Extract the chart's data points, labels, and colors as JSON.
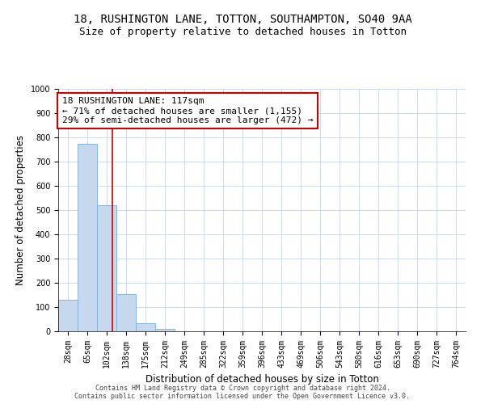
{
  "title": "18, RUSHINGTON LANE, TOTTON, SOUTHAMPTON, SO40 9AA",
  "subtitle": "Size of property relative to detached houses in Totton",
  "xlabel": "Distribution of detached houses by size in Totton",
  "ylabel": "Number of detached properties",
  "footer_line1": "Contains HM Land Registry data © Crown copyright and database right 2024.",
  "footer_line2": "Contains public sector information licensed under the Open Government Licence v3.0.",
  "bar_labels": [
    "28sqm",
    "65sqm",
    "102sqm",
    "138sqm",
    "175sqm",
    "212sqm",
    "249sqm",
    "285sqm",
    "322sqm",
    "359sqm",
    "396sqm",
    "433sqm",
    "469sqm",
    "506sqm",
    "543sqm",
    "580sqm",
    "616sqm",
    "653sqm",
    "690sqm",
    "727sqm",
    "764sqm"
  ],
  "bar_values": [
    130,
    775,
    520,
    155,
    35,
    10,
    0,
    0,
    0,
    0,
    0,
    0,
    0,
    0,
    0,
    0,
    0,
    0,
    0,
    0,
    0
  ],
  "bar_color": "#c5d8ed",
  "bar_edge_color": "#7bafd4",
  "grid_color": "#d0d8e8",
  "annotation_text": "18 RUSHINGTON LANE: 117sqm\n← 71% of detached houses are smaller (1,155)\n29% of semi-detached houses are larger (472) →",
  "annotation_box_color": "white",
  "annotation_box_edge_color": "#cc0000",
  "vline_color": "#cc0000",
  "ylim": [
    0,
    1000
  ],
  "yticks": [
    0,
    100,
    200,
    300,
    400,
    500,
    600,
    700,
    800,
    900,
    1000
  ],
  "background_color": "white",
  "title_fontsize": 10,
  "subtitle_fontsize": 9,
  "axis_label_fontsize": 8.5,
  "tick_fontsize": 7,
  "annotation_fontsize": 8,
  "footer_fontsize": 6
}
